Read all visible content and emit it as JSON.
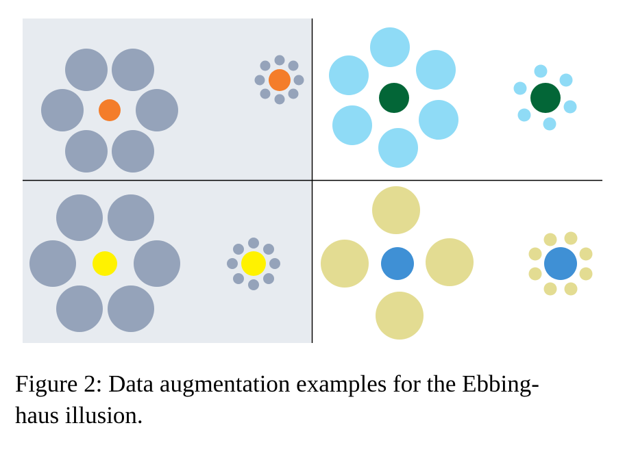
{
  "figure": {
    "caption": "Figure 2: Data augmentation examples for the Ebbing-haus illusion.",
    "caption_line_1": "Figure 2: Data augmentation examples for the Ebbing-",
    "caption_line_2": "haus illusion.",
    "panels": [
      {
        "id": "top-left",
        "background_color": "#e7ebf0",
        "pairs": [
          {
            "center_color": "#f47d2a",
            "surround_color": "#95a3ba",
            "surround_count": 6,
            "surround_size": "large"
          },
          {
            "center_color": "#f47d2a",
            "surround_color": "#95a3ba",
            "surround_count": 8,
            "surround_size": "small"
          }
        ]
      },
      {
        "id": "top-right",
        "background_color": "#ffffff",
        "pairs": [
          {
            "center_color": "#036637",
            "surround_color": "#8fdbf6",
            "surround_count": 6,
            "surround_size": "large"
          },
          {
            "center_color": "#036637",
            "surround_color": "#8fdbf6",
            "surround_count": 6,
            "surround_size": "small"
          }
        ]
      },
      {
        "id": "bottom-left",
        "background_color": "#e7ebf0",
        "pairs": [
          {
            "center_color": "#fff200",
            "surround_color": "#95a3ba",
            "surround_count": 6,
            "surround_size": "large"
          },
          {
            "center_color": "#fff200",
            "surround_color": "#95a3ba",
            "surround_count": 8,
            "surround_size": "small"
          }
        ]
      },
      {
        "id": "bottom-right",
        "background_color": "#ffffff",
        "pairs": [
          {
            "center_color": "#3f90d5",
            "surround_color": "#e3dc92",
            "surround_count": 4,
            "surround_size": "large"
          },
          {
            "center_color": "#3f90d5",
            "surround_color": "#e3dc92",
            "surround_count": 8,
            "surround_size": "small"
          }
        ]
      }
    ],
    "divider_color": "#000000"
  }
}
